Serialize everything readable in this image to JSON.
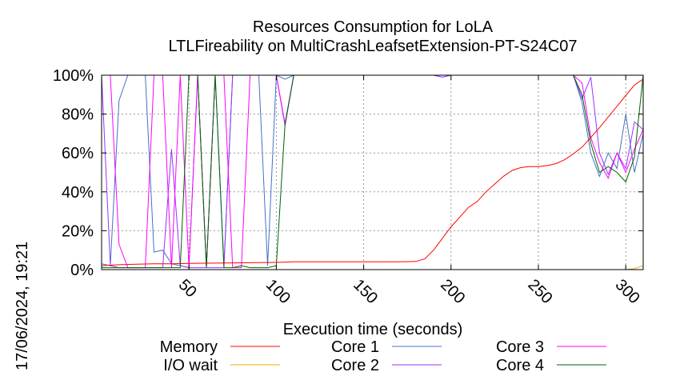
{
  "chart_data": {
    "type": "line",
    "title": "Resources Consumption for LoLA",
    "subtitle": "LTLFireability on MultiCrashLeafsetExtension-PT-S24C07",
    "xlabel": "Execution time (seconds)",
    "ylabel": "",
    "side_label": "17/06/2024, 19:21",
    "xlim": [
      0,
      310
    ],
    "ylim": [
      0,
      100
    ],
    "x_ticks": [
      50,
      100,
      150,
      200,
      250,
      300
    ],
    "x_tick_labels": [
      "50",
      "100",
      "150",
      "200",
      "250",
      "300"
    ],
    "y_ticks": [
      0,
      20,
      40,
      60,
      80,
      100
    ],
    "y_tick_labels": [
      "0%",
      "20%",
      "40%",
      "60%",
      "80%",
      "100%"
    ],
    "grid": true,
    "legend_position": "bottom",
    "series": [
      {
        "name": "Memory",
        "color": "#ff0000",
        "x": [
          0,
          10,
          20,
          30,
          40,
          50,
          60,
          70,
          80,
          90,
          100,
          110,
          120,
          130,
          140,
          150,
          160,
          170,
          180,
          185,
          190,
          195,
          200,
          205,
          210,
          215,
          220,
          225,
          230,
          235,
          240,
          245,
          250,
          255,
          260,
          265,
          270,
          275,
          280,
          285,
          290,
          295,
          300,
          305,
          310
        ],
        "y": [
          2,
          2.5,
          2.8,
          3,
          3,
          3.2,
          3.3,
          3.4,
          3.5,
          3.6,
          3.7,
          4,
          4,
          4,
          4,
          4,
          4,
          4,
          4.2,
          5.5,
          10,
          16,
          22,
          27,
          32,
          35,
          40,
          44,
          48,
          51,
          52.5,
          53,
          53,
          53.5,
          54.5,
          56.5,
          59.5,
          63,
          68,
          73,
          78.5,
          84,
          89.5,
          95,
          98
        ]
      },
      {
        "name": "I/O wait",
        "color": "#ffa500",
        "x": [
          0,
          50,
          100,
          150,
          200,
          250,
          300,
          305,
          310
        ],
        "y": [
          0,
          0,
          0,
          0,
          0,
          0,
          0,
          0.5,
          2
        ]
      },
      {
        "name": "Core 1",
        "color": "#4472c4",
        "x": [
          0,
          5,
          10,
          15,
          20,
          25,
          30,
          35,
          40,
          45,
          50,
          55,
          60,
          65,
          70,
          75,
          80,
          85,
          90,
          95,
          100,
          105,
          110,
          115,
          120,
          140,
          160,
          180,
          190,
          195,
          200,
          220,
          240,
          260,
          270,
          275,
          280,
          285,
          290,
          295,
          300,
          305,
          310
        ],
        "y": [
          3,
          2,
          87,
          100,
          100,
          100,
          9,
          10,
          3,
          2,
          1,
          100,
          1,
          100,
          2,
          100,
          100,
          100,
          100,
          2,
          100,
          98,
          100,
          100,
          100,
          100,
          100,
          100,
          100,
          99,
          100,
          100,
          100,
          100,
          100,
          86,
          60,
          48,
          60,
          52,
          80,
          50,
          70
        ]
      },
      {
        "name": "Core 2",
        "color": "#9933ff",
        "x": [
          0,
          5,
          10,
          15,
          20,
          25,
          30,
          35,
          40,
          45,
          50,
          55,
          60,
          65,
          70,
          75,
          80,
          85,
          90,
          95,
          100,
          105,
          110,
          115,
          120,
          140,
          160,
          180,
          190,
          195,
          200,
          220,
          240,
          260,
          270,
          275,
          280,
          285,
          290,
          295,
          300,
          305,
          310
        ],
        "y": [
          100,
          2,
          1,
          1,
          1,
          1,
          1,
          1,
          62,
          2,
          1,
          1,
          1,
          1,
          1,
          100,
          100,
          100,
          100,
          100,
          100,
          74,
          100,
          100,
          100,
          100,
          100,
          100,
          100,
          99,
          100,
          100,
          100,
          100,
          100,
          88,
          99,
          60,
          49,
          60,
          52,
          76,
          72
        ]
      },
      {
        "name": "Core 3",
        "color": "#ff00ff",
        "x": [
          0,
          5,
          10,
          15,
          20,
          25,
          30,
          35,
          40,
          45,
          50,
          55,
          60,
          65,
          70,
          75,
          80,
          85,
          90,
          95,
          100,
          105,
          110,
          115,
          120,
          140,
          160,
          180,
          190,
          200,
          220,
          240,
          260,
          270,
          275,
          280,
          285,
          290,
          295,
          300,
          305,
          310
        ],
        "y": [
          100,
          100,
          13,
          1,
          1,
          1,
          100,
          100,
          1,
          100,
          1,
          100,
          1,
          100,
          100,
          1,
          1,
          100,
          100,
          100,
          100,
          75,
          100,
          100,
          100,
          100,
          100,
          100,
          100,
          100,
          100,
          100,
          100,
          100,
          96,
          68,
          55,
          47,
          60,
          50,
          62,
          72
        ]
      },
      {
        "name": "Core 4",
        "color": "#006400",
        "x": [
          0,
          5,
          10,
          15,
          20,
          25,
          30,
          35,
          40,
          45,
          50,
          55,
          60,
          65,
          70,
          75,
          80,
          85,
          90,
          95,
          100,
          105,
          110,
          115,
          120,
          140,
          160,
          180,
          200,
          220,
          240,
          260,
          270,
          275,
          280,
          285,
          290,
          295,
          300,
          305,
          310
        ],
        "y": [
          1,
          1,
          1,
          1,
          1,
          1,
          1,
          1,
          1,
          1,
          100,
          100,
          1,
          100,
          1,
          1,
          2,
          1,
          1,
          1,
          2,
          75,
          100,
          100,
          100,
          100,
          100,
          100,
          100,
          100,
          100,
          100,
          100,
          90,
          65,
          50,
          53,
          50,
          45,
          58,
          100
        ]
      }
    ]
  }
}
